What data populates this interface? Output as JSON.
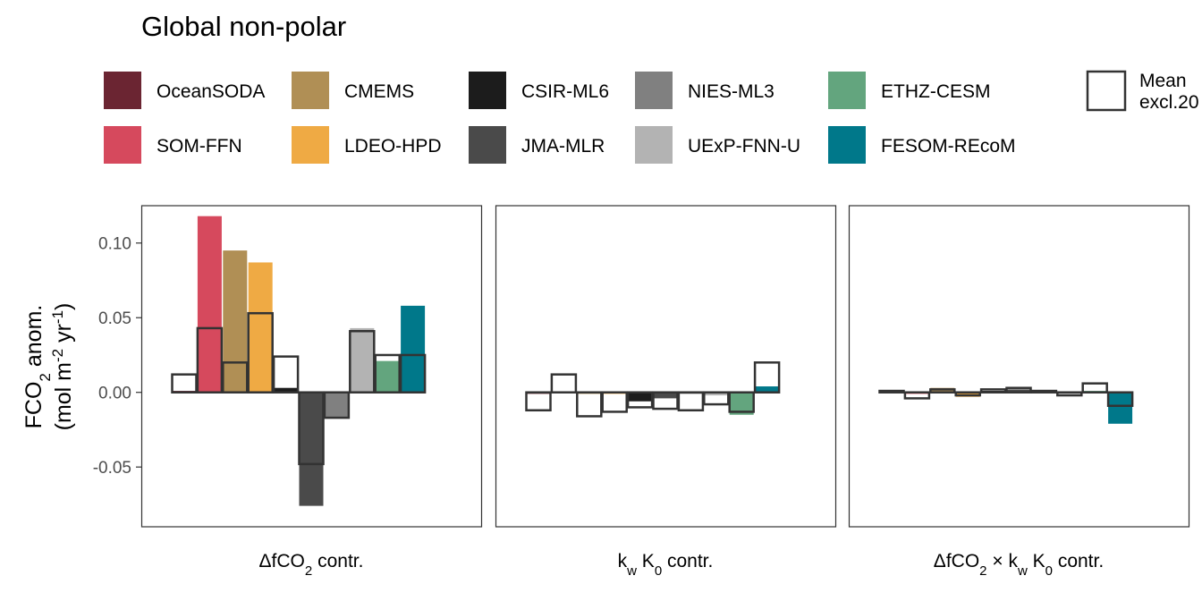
{
  "chart_data": {
    "type": "bar",
    "title": "Global non-polar",
    "ylabel": {
      "main": "FCO",
      "sub": "2",
      "rest": " anom.",
      "line2_a": "(mol m",
      "sup1": "-2",
      "line2_b": " yr",
      "sup2": "-1",
      "line2_c": ")"
    },
    "ylim": [
      -0.09,
      0.125
    ],
    "yticks": [
      -0.05,
      0.0,
      0.05,
      0.1
    ],
    "ytick_labels": [
      "-0.05",
      "0.00",
      "0.05",
      "0.10"
    ],
    "grid": false,
    "legend_position": "top",
    "categories": [
      "OceanSODA",
      "SOM-FFN",
      "CMEMS",
      "LDEO-HPD",
      "CSIR-ML6",
      "JMA-MLR",
      "NIES-ML3",
      "UExP-FNN-U",
      "ETHZ-CESM",
      "FESOM-REcoM"
    ],
    "colors": [
      "#6b2532",
      "#d6495d",
      "#b08f55",
      "#efaa44",
      "#1c1c1c",
      "#4a4a4a",
      "#808080",
      "#b3b3b3",
      "#63a57e",
      "#00788a"
    ],
    "legend": {
      "columns": [
        [
          "OceanSODA",
          "SOM-FFN"
        ],
        [
          "CMEMS",
          "LDEO-HPD"
        ],
        [
          "CSIR-ML6",
          "JMA-MLR"
        ],
        [
          "NIES-ML3",
          "UExP-FNN-U"
        ],
        [
          "ETHZ-CESM",
          "FESOM-REcoM"
        ]
      ],
      "mean_label_line1": "Mean",
      "mean_label_line2": "excl.20"
    },
    "panels": [
      {
        "label": {
          "a": "ΔfCO",
          "sub": "2",
          "b": " contr."
        },
        "series": [
          {
            "category": "OceanSODA",
            "value": 0.001,
            "mean": 0.012
          },
          {
            "category": "SOM-FFN",
            "value": 0.118,
            "mean": 0.043
          },
          {
            "category": "CMEMS",
            "value": 0.095,
            "mean": 0.02
          },
          {
            "category": "LDEO-HPD",
            "value": 0.087,
            "mean": 0.053
          },
          {
            "category": "CSIR-ML6",
            "value": 0.003,
            "mean": 0.024
          },
          {
            "category": "JMA-MLR",
            "value": -0.076,
            "mean": -0.048
          },
          {
            "category": "NIES-ML3",
            "value": -0.017,
            "mean": -0.017
          },
          {
            "category": "UExP-FNN-U",
            "value": 0.043,
            "mean": 0.041
          },
          {
            "category": "ETHZ-CESM",
            "value": 0.021,
            "mean": 0.025
          },
          {
            "category": "FESOM-REcoM",
            "value": 0.058,
            "mean": 0.025
          }
        ]
      },
      {
        "label": {
          "a": "k",
          "sub1": "w",
          "b": " K",
          "sub2": "0",
          "c": " contr."
        },
        "series": [
          {
            "category": "OceanSODA",
            "value": -0.001,
            "mean": -0.012
          },
          {
            "category": "SOM-FFN",
            "value": 0.0,
            "mean": 0.012
          },
          {
            "category": "CMEMS",
            "value": -0.001,
            "mean": -0.016
          },
          {
            "category": "LDEO-HPD",
            "value": -0.001,
            "mean": -0.013
          },
          {
            "category": "CSIR-ML6",
            "value": -0.006,
            "mean": -0.01
          },
          {
            "category": "JMA-MLR",
            "value": -0.004,
            "mean": -0.011
          },
          {
            "category": "NIES-ML3",
            "value": -0.001,
            "mean": -0.012
          },
          {
            "category": "UExP-FNN-U",
            "value": -0.002,
            "mean": -0.008
          },
          {
            "category": "ETHZ-CESM",
            "value": -0.015,
            "mean": -0.013
          },
          {
            "category": "FESOM-REcoM",
            "value": 0.004,
            "mean": 0.02
          }
        ]
      },
      {
        "label": {
          "a": "ΔfCO",
          "sub1": "2",
          "b": " × k",
          "sub2": "w",
          "c": " K",
          "sub3": "0",
          "d": " contr."
        },
        "series": [
          {
            "category": "OceanSODA",
            "value": 0.001,
            "mean": 0.001
          },
          {
            "category": "SOM-FFN",
            "value": -0.001,
            "mean": -0.004
          },
          {
            "category": "CMEMS",
            "value": 0.003,
            "mean": 0.002
          },
          {
            "category": "LDEO-HPD",
            "value": -0.003,
            "mean": -0.002
          },
          {
            "category": "CSIR-ML6",
            "value": 0.001,
            "mean": 0.002
          },
          {
            "category": "JMA-MLR",
            "value": 0.002,
            "mean": 0.003
          },
          {
            "category": "NIES-ML3",
            "value": 0.001,
            "mean": 0.001
          },
          {
            "category": "UExP-FNN-U",
            "value": -0.001,
            "mean": -0.002
          },
          {
            "category": "ETHZ-CESM",
            "value": 0.001,
            "mean": 0.006
          },
          {
            "category": "FESOM-REcoM",
            "value": -0.021,
            "mean": -0.009
          }
        ]
      }
    ]
  }
}
